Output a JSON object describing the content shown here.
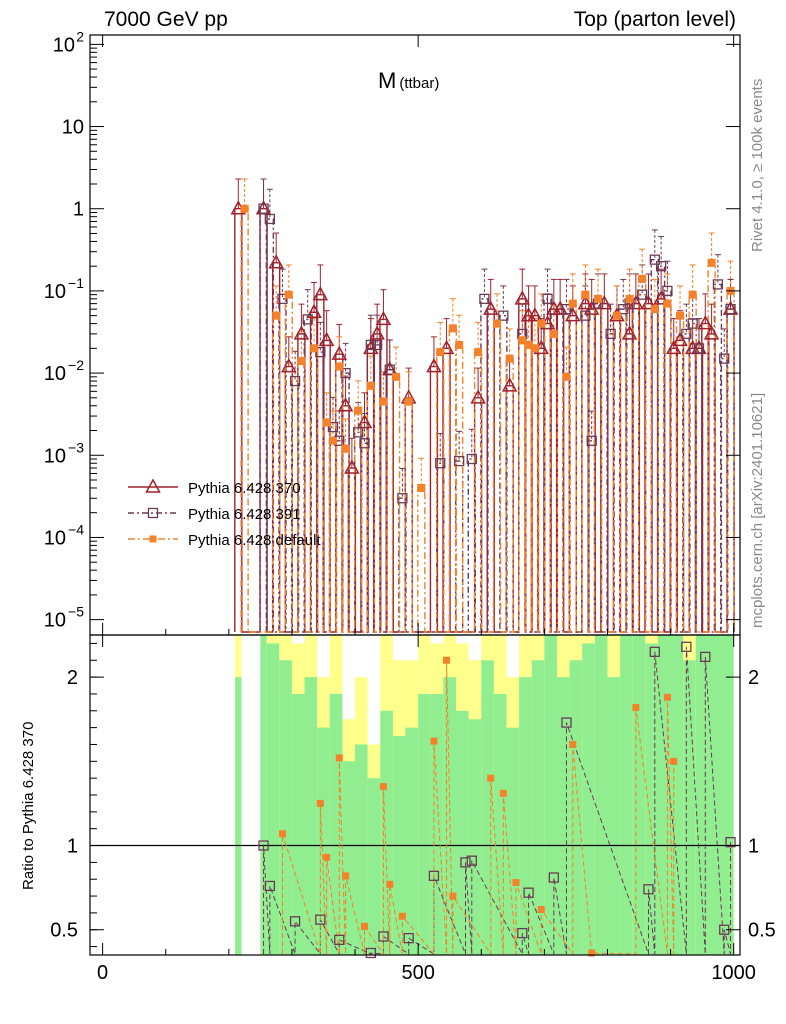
{
  "header": {
    "left": "7000 GeV pp",
    "right": "Top (parton level)"
  },
  "side": {
    "rivet": "Rivet 4.1.0, ≥ 100k events",
    "mcplots": "mcplots.cern.ch [arXiv:2401.10621]"
  },
  "colors": {
    "p370": "#a0212c",
    "p391": "#6b3a55",
    "pdef": "#f5812a",
    "band_green": "#90ee90",
    "band_yellow": "#ffff8c"
  },
  "chart_data": {
    "type": "scatter",
    "title": "M",
    "title_sub": "(ttbar)",
    "xlabel": "",
    "ylabel": "",
    "xlim": [
      -20,
      1010
    ],
    "ylim_log": [
      6.5e-06,
      130
    ],
    "ratio_label": "Ratio to Pythia 6.428 370",
    "ratio_ylim": [
      0.35,
      2.25
    ],
    "x_ticks": [
      0,
      500,
      1000
    ],
    "x_tick_labels": [
      "0",
      "500",
      "1000"
    ],
    "y_ticks": [
      {
        "v": 100,
        "base": "10",
        "exp": "2"
      },
      {
        "v": 10,
        "base": "10",
        "exp": ""
      },
      {
        "v": 1,
        "base": "1",
        "exp": ""
      },
      {
        "v": 0.1,
        "base": "10",
        "exp": "−1"
      },
      {
        "v": 0.01,
        "base": "10",
        "exp": "−2"
      },
      {
        "v": 0.001,
        "base": "10",
        "exp": "−3"
      },
      {
        "v": 0.0001,
        "base": "10",
        "exp": "−4"
      },
      {
        "v": 1e-05,
        "base": "10",
        "exp": "−5"
      }
    ],
    "ratio_ticks": [
      {
        "v": 2,
        "label": "2"
      },
      {
        "v": 1,
        "label": "1"
      },
      {
        "v": 0.5,
        "label": "0.5"
      }
    ],
    "series": [
      {
        "name": "Pythia 6.428 370",
        "marker": "triangle",
        "x": [
          215,
          255,
          275,
          295,
          315,
          335,
          345,
          355,
          375,
          385,
          395,
          415,
          425,
          435,
          445,
          455,
          485,
          525,
          545,
          595,
          615,
          645,
          665,
          675,
          685,
          695,
          705,
          715,
          725,
          745,
          765,
          775,
          795,
          815,
          835,
          845,
          865,
          885,
          905,
          915,
          935,
          945,
          955,
          965,
          995
        ],
        "y": [
          1.0,
          1.0,
          0.22,
          0.012,
          0.03,
          0.055,
          0.09,
          0.025,
          0.017,
          0.004,
          0.0007,
          0.0025,
          0.02,
          0.03,
          0.045,
          0.011,
          0.005,
          0.012,
          0.02,
          0.005,
          0.06,
          0.007,
          0.08,
          0.05,
          0.05,
          0.02,
          0.04,
          0.06,
          0.06,
          0.05,
          0.07,
          0.06,
          0.07,
          0.05,
          0.03,
          0.07,
          0.07,
          0.08,
          0.02,
          0.025,
          0.02,
          0.02,
          0.04,
          0.03,
          0.06
        ]
      },
      {
        "name": "Pythia 6.428 391",
        "marker": "square",
        "x": [
          255,
          265,
          285,
          305,
          325,
          345,
          365,
          375,
          385,
          405,
          415,
          425,
          435,
          455,
          475,
          535,
          565,
          585,
          605,
          635,
          665,
          705,
          735,
          765,
          775,
          785,
          805,
          825,
          835,
          855,
          875,
          885,
          895,
          925,
          935,
          945,
          975,
          985,
          995
        ],
        "y": [
          1.0,
          0.75,
          0.08,
          0.008,
          0.045,
          0.018,
          0.0022,
          0.0015,
          0.01,
          0.0019,
          0.0014,
          0.022,
          0.022,
          0.011,
          0.0003,
          0.0008,
          0.00085,
          0.0009,
          0.08,
          0.05,
          0.03,
          0.08,
          0.06,
          0.05,
          0.0015,
          0.07,
          0.03,
          0.06,
          0.07,
          0.09,
          0.24,
          0.2,
          0.1,
          0.03,
          0.04,
          0.02,
          0.12,
          0.015,
          0.06
        ]
      },
      {
        "name": "Pythia 6.428 default",
        "marker": "filled-square",
        "x": [
          225,
          275,
          295,
          315,
          335,
          355,
          365,
          375,
          385,
          405,
          425,
          445,
          465,
          485,
          505,
          535,
          555,
          565,
          595,
          625,
          645,
          665,
          675,
          685,
          695,
          715,
          735,
          745,
          765,
          785,
          815,
          835,
          855,
          875,
          895,
          915,
          935,
          965,
          995
        ],
        "y": [
          1.0,
          0.05,
          0.09,
          0.014,
          0.02,
          0.0025,
          0.0015,
          0.012,
          0.0012,
          0.0035,
          0.007,
          0.0045,
          0.009,
          0.0045,
          0.0004,
          0.018,
          0.035,
          0.022,
          0.018,
          0.04,
          0.015,
          0.025,
          0.022,
          0.02,
          0.04,
          0.03,
          0.009,
          0.07,
          0.09,
          0.08,
          0.05,
          0.08,
          0.14,
          0.06,
          0.07,
          0.05,
          0.09,
          0.22,
          0.1
        ]
      }
    ],
    "ratios": [
      {
        "name": "Pythia 6.428 391",
        "x": [
          255,
          265,
          305,
          345,
          375,
          425,
          445,
          485,
          525,
          575,
          585,
          665,
          675,
          715,
          735,
          865,
          875,
          925,
          955,
          985,
          995
        ],
        "y": [
          1.0,
          0.76,
          0.55,
          0.56,
          0.44,
          0.3,
          0.46,
          0.45,
          0.82,
          0.9,
          0.91,
          0.48,
          0.72,
          0.81,
          1.73,
          0.74,
          2.15,
          2.18,
          2.12,
          0.5,
          1.02
        ]
      },
      {
        "name": "Pythia 6.428 default",
        "x": [
          285,
          345,
          355,
          375,
          385,
          415,
          445,
          455,
          475,
          525,
          545,
          555,
          615,
          635,
          655,
          695,
          745,
          775,
          845,
          895,
          905
        ],
        "y": [
          1.07,
          1.25,
          0.93,
          1.52,
          0.82,
          0.52,
          1.35,
          0.77,
          0.58,
          1.62,
          2.1,
          0.7,
          1.4,
          1.31,
          0.78,
          0.62,
          1.6,
          0.36,
          1.82,
          1.88,
          1.5
        ]
      }
    ],
    "band_bins": [
      {
        "x0": 210,
        "x1": 220,
        "g": 2.0,
        "y": 2.25
      },
      {
        "x0": 250,
        "x1": 260,
        "g": 2.25,
        "y": 2.25
      },
      {
        "x0": 260,
        "x1": 280,
        "g": 2.2,
        "y": 2.25
      },
      {
        "x0": 280,
        "x1": 300,
        "g": 2.1,
        "y": 2.25
      },
      {
        "x0": 300,
        "x1": 320,
        "g": 1.9,
        "y": 2.2
      },
      {
        "x0": 320,
        "x1": 340,
        "g": 2.0,
        "y": 2.25
      },
      {
        "x0": 340,
        "x1": 360,
        "g": 1.7,
        "y": 2.0
      },
      {
        "x0": 360,
        "x1": 380,
        "g": 1.9,
        "y": 2.25
      },
      {
        "x0": 380,
        "x1": 400,
        "g": 1.5,
        "y": 1.75
      },
      {
        "x0": 400,
        "x1": 420,
        "g": 1.6,
        "y": 2.0
      },
      {
        "x0": 420,
        "x1": 440,
        "g": 1.4,
        "y": 1.6
      },
      {
        "x0": 440,
        "x1": 460,
        "g": 1.8,
        "y": 2.25
      },
      {
        "x0": 460,
        "x1": 480,
        "g": 1.65,
        "y": 2.1
      },
      {
        "x0": 480,
        "x1": 500,
        "g": 1.7,
        "y": 2.1
      },
      {
        "x0": 500,
        "x1": 520,
        "g": 1.9,
        "y": 2.25
      },
      {
        "x0": 520,
        "x1": 540,
        "g": 1.9,
        "y": 2.2
      },
      {
        "x0": 540,
        "x1": 560,
        "g": 2.0,
        "y": 2.25
      },
      {
        "x0": 560,
        "x1": 580,
        "g": 1.8,
        "y": 2.2
      },
      {
        "x0": 580,
        "x1": 600,
        "g": 1.75,
        "y": 2.1
      },
      {
        "x0": 600,
        "x1": 620,
        "g": 2.1,
        "y": 2.25
      },
      {
        "x0": 620,
        "x1": 640,
        "g": 1.9,
        "y": 2.25
      },
      {
        "x0": 640,
        "x1": 660,
        "g": 1.7,
        "y": 2.0
      },
      {
        "x0": 660,
        "x1": 680,
        "g": 2.0,
        "y": 2.25
      },
      {
        "x0": 680,
        "x1": 700,
        "g": 2.1,
        "y": 2.25
      },
      {
        "x0": 700,
        "x1": 720,
        "g": 2.25,
        "y": 2.25
      },
      {
        "x0": 720,
        "x1": 740,
        "g": 2.0,
        "y": 2.25
      },
      {
        "x0": 740,
        "x1": 760,
        "g": 2.1,
        "y": 2.25
      },
      {
        "x0": 760,
        "x1": 780,
        "g": 2.2,
        "y": 2.25
      },
      {
        "x0": 780,
        "x1": 800,
        "g": 2.25,
        "y": 2.25
      },
      {
        "x0": 800,
        "x1": 820,
        "g": 2.0,
        "y": 2.25
      },
      {
        "x0": 820,
        "x1": 840,
        "g": 2.25,
        "y": 2.25
      },
      {
        "x0": 840,
        "x1": 860,
        "g": 2.25,
        "y": 2.25
      },
      {
        "x0": 860,
        "x1": 880,
        "g": 2.2,
        "y": 2.25
      },
      {
        "x0": 880,
        "x1": 900,
        "g": 2.25,
        "y": 2.25
      },
      {
        "x0": 900,
        "x1": 920,
        "g": 2.25,
        "y": 2.25
      },
      {
        "x0": 920,
        "x1": 940,
        "g": 2.1,
        "y": 2.25
      },
      {
        "x0": 940,
        "x1": 960,
        "g": 2.25,
        "y": 2.25
      },
      {
        "x0": 960,
        "x1": 980,
        "g": 2.25,
        "y": 2.25
      },
      {
        "x0": 980,
        "x1": 1000,
        "g": 2.25,
        "y": 2.25
      }
    ]
  }
}
